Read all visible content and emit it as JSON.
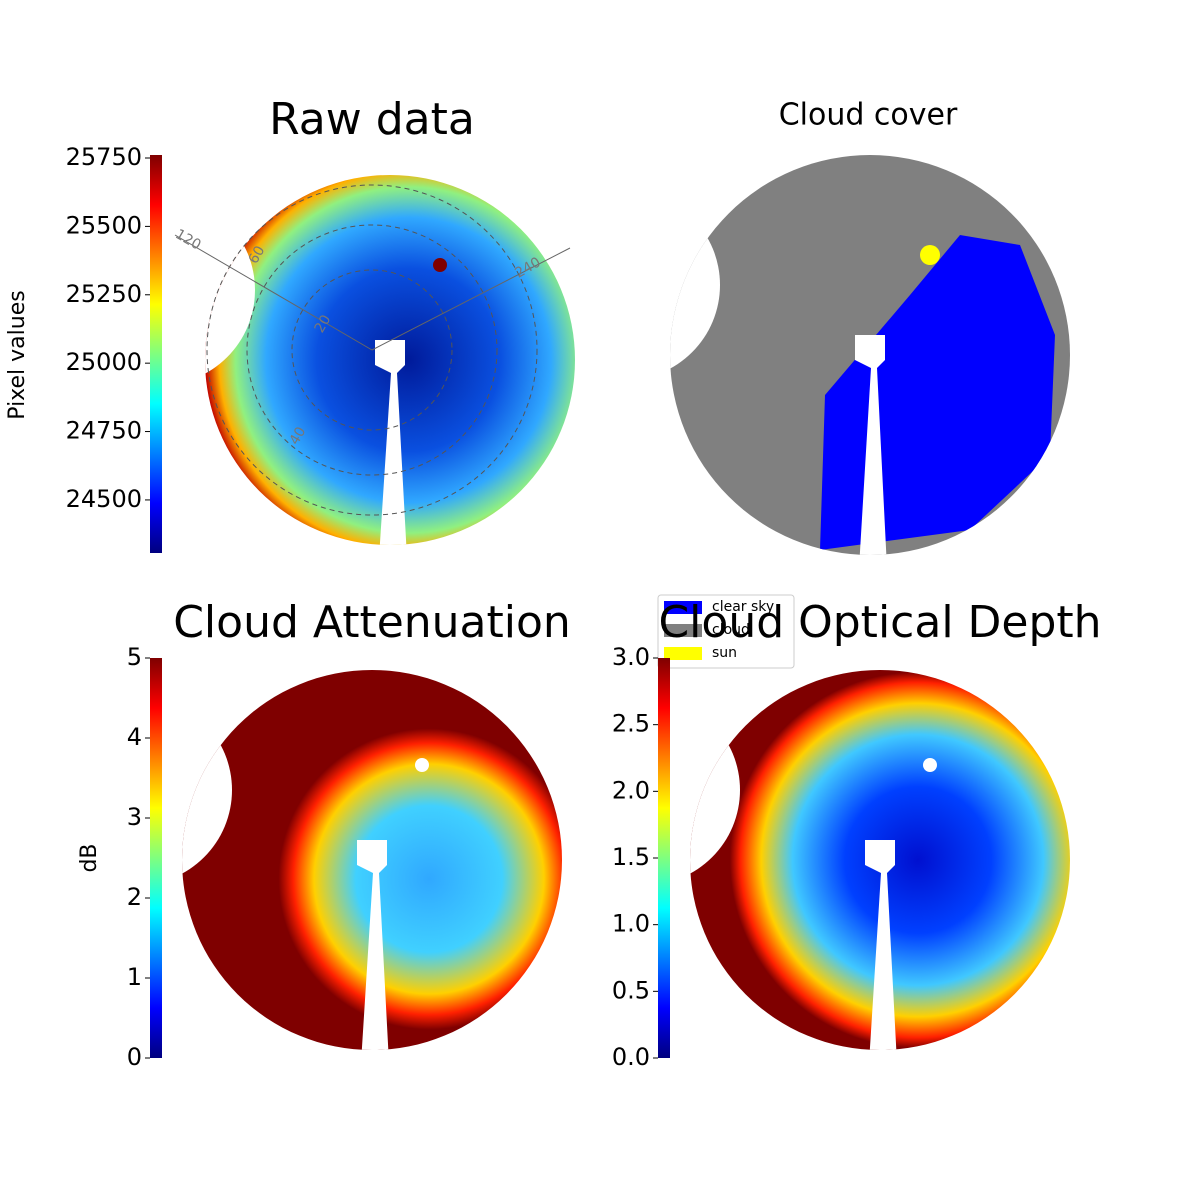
{
  "chart_data": [
    {
      "type": "image",
      "title": "Raw data",
      "colorbar_label": "Pixel values",
      "ylim": [
        24306,
        25761
      ],
      "yticks": [
        24500,
        24750,
        25000,
        25250,
        25500,
        25750
      ],
      "colormap": "jet",
      "annotations": [
        "120",
        "60",
        "240",
        "20",
        "40"
      ]
    },
    {
      "type": "image",
      "title": "Cloud cover",
      "series": [
        {
          "name": "clear sky",
          "color": "#0000ff"
        },
        {
          "name": "cloud",
          "color": "#808080"
        },
        {
          "name": "sun",
          "color": "#ffff00"
        }
      ]
    },
    {
      "type": "image",
      "title": "Cloud Attenuation",
      "colorbar_label": "dB",
      "ylim": [
        0,
        5
      ],
      "yticks": [
        0,
        1,
        2,
        3,
        4,
        5
      ],
      "colormap": "jet"
    },
    {
      "type": "image",
      "title": "Cloud Optical Depth",
      "ylim": [
        0,
        3
      ],
      "yticks": [
        {
          "value": 0,
          "label": "0.0"
        },
        0.5,
        {
          "value": 1,
          "label": "1.0"
        },
        1.5,
        {
          "value": 2,
          "label": "2.0"
        },
        2.5,
        {
          "value": 3,
          "label": "3.0"
        }
      ],
      "colormap": "jet"
    }
  ]
}
